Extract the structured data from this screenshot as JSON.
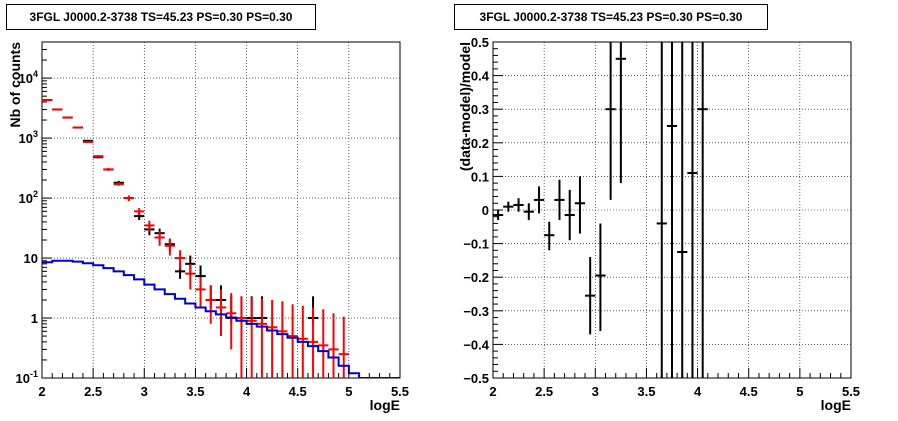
{
  "chart_data": [
    {
      "type": "scatter",
      "title": "3FGL J0000.2-3738 TS=45.23 PS=0.30 PS=0.30",
      "xlabel": "logE",
      "ylabel": "Nb of counts",
      "xlim": [
        2,
        5.5
      ],
      "ylim": [
        0.1,
        40000
      ],
      "yscale": "log",
      "grid": true,
      "x_ticks": [
        "2",
        "2.5",
        "3",
        "3.5",
        "4",
        "4.5",
        "5",
        "5.5"
      ],
      "y_ticks": [
        "10^{-1}",
        "1",
        "10",
        "10^{2}",
        "10^{3}",
        "10^{4}"
      ],
      "bin_edges": [
        2.0,
        2.1,
        2.2,
        2.3,
        2.4,
        2.5,
        2.6,
        2.7,
        2.8,
        2.9,
        3.0,
        3.1,
        3.2,
        3.3,
        3.4,
        3.5,
        3.6,
        3.7,
        3.8,
        3.9,
        4.0,
        4.1,
        4.2,
        4.3,
        4.4,
        4.5,
        4.6,
        4.7,
        4.8,
        4.9,
        5.0,
        5.1,
        5.2,
        5.3,
        5.4,
        5.5
      ],
      "series": [
        {
          "color": "#000000",
          "x": [
            2.05,
            2.15,
            2.25,
            2.35,
            2.45,
            2.55,
            2.65,
            2.75,
            2.85,
            2.95,
            3.05,
            3.15,
            3.25,
            3.35,
            3.45,
            3.55,
            3.65,
            3.75,
            3.85,
            3.95,
            4.05,
            4.15,
            4.65
          ],
          "y": [
            4300,
            3000,
            2200,
            1500,
            900,
            480,
            300,
            180,
            100,
            50,
            30,
            26,
            17,
            6,
            8,
            5,
            2,
            2,
            1,
            1,
            1,
            1,
            1
          ],
          "yerr_low": [
            4200,
            2900,
            2150,
            1460,
            880,
            460,
            285,
            170,
            90,
            43,
            24,
            21,
            13,
            4.5,
            5.2,
            3,
            1.5,
            1.5,
            0.8,
            0.8,
            0.8,
            0.8,
            0.8
          ],
          "yerr_high": [
            4450,
            3100,
            2260,
            1550,
            930,
            500,
            318,
            194,
            110,
            58,
            36,
            31,
            21,
            8,
            11,
            7.5,
            3.5,
            3.5,
            2.3,
            2.3,
            2.3,
            2.3,
            2.3
          ]
        },
        {
          "color": "#ff0000",
          "x": [
            2.05,
            2.15,
            2.25,
            2.35,
            2.45,
            2.55,
            2.65,
            2.75,
            2.85,
            2.95,
            3.05,
            3.15,
            3.25,
            3.35,
            3.45,
            3.55,
            3.65,
            3.75,
            3.85,
            3.95,
            4.05,
            4.15,
            4.25,
            4.35,
            4.45,
            4.55,
            4.65,
            4.75,
            4.85,
            4.95
          ],
          "y": [
            4300,
            3000,
            2200,
            1500,
            860,
            500,
            300,
            170,
            100,
            60,
            35,
            22,
            16,
            10,
            5.5,
            3,
            2,
            1.5,
            1.2,
            1,
            0.9,
            0.8,
            0.7,
            0.6,
            0.5,
            0.45,
            0.4,
            0.35,
            0.3,
            0.25
          ],
          "yerr_low": [
            4200,
            2900,
            2150,
            1460,
            840,
            480,
            285,
            160,
            90,
            52,
            28,
            16,
            11,
            6.5,
            3,
            1.5,
            0.8,
            0.5,
            0.3,
            0.1,
            0.1,
            0.1,
            0.1,
            0.1,
            0.1,
            0.1,
            0.1,
            0.1,
            0.1,
            0.1
          ],
          "yerr_high": [
            4450,
            3100,
            2260,
            1550,
            890,
            520,
            318,
            184,
            110,
            68,
            42,
            28,
            21,
            13.5,
            8,
            4.8,
            3.4,
            3,
            2.6,
            2.3,
            2.2,
            2.1,
            2,
            1.9,
            1.7,
            1.6,
            1.5,
            1.4,
            1.2,
            1.05
          ]
        },
        {
          "color": "#0000cc",
          "kind": "step",
          "values": [
            8.5,
            9,
            9,
            8.7,
            8.2,
            7.6,
            6.8,
            6,
            5.2,
            4.4,
            3.6,
            3,
            2.5,
            2.1,
            1.75,
            1.5,
            1.3,
            1.15,
            1.02,
            0.9,
            0.8,
            0.72,
            0.62,
            0.54,
            0.47,
            0.4,
            0.34,
            0.28,
            0.22,
            0.16,
            0.12,
            0.1,
            0.1,
            0.1,
            0.1
          ]
        }
      ]
    },
    {
      "type": "scatter",
      "title": "3FGL J0000.2-3738 TS=45.23 PS=0.30 PS=0.30",
      "xlabel": "logE",
      "ylabel": "(data-model)/model",
      "xlim": [
        2,
        5.5
      ],
      "ylim": [
        -0.5,
        0.5
      ],
      "grid": true,
      "x_ticks": [
        "2",
        "2.5",
        "3",
        "3.5",
        "4",
        "4.5",
        "5",
        "5.5"
      ],
      "y_ticks": [
        "−0.5",
        "−0.4",
        "−0.3",
        "−0.2",
        "−0.1",
        "0",
        "0.1",
        "0.2",
        "0.3",
        "0.4",
        "0.5"
      ],
      "series": [
        {
          "color": "#000000",
          "x": [
            2.05,
            2.15,
            2.25,
            2.35,
            2.45,
            2.55,
            2.65,
            2.75,
            2.85,
            2.95,
            3.05,
            3.15,
            3.25,
            3.65,
            3.75,
            3.85,
            3.95,
            4.05
          ],
          "y": [
            -0.015,
            0.01,
            0.015,
            -0.005,
            0.03,
            -0.075,
            0.03,
            -0.015,
            0.02,
            -0.255,
            -0.195,
            0.3,
            0.45,
            -0.04,
            0.25,
            -0.125,
            0.11,
            0.3
          ],
          "yerr_low": [
            -0.03,
            -0.005,
            -0.005,
            -0.03,
            -0.01,
            -0.12,
            -0.03,
            -0.09,
            -0.07,
            -0.37,
            -0.36,
            0.03,
            0.08,
            -0.5,
            -0.5,
            -0.5,
            -0.5,
            -0.5
          ],
          "yerr_high": [
            0.0,
            0.025,
            0.035,
            0.02,
            0.07,
            -0.035,
            0.09,
            0.06,
            0.1,
            -0.14,
            -0.04,
            0.5,
            0.5,
            0.5,
            0.5,
            0.5,
            0.5,
            0.5
          ]
        }
      ]
    }
  ]
}
